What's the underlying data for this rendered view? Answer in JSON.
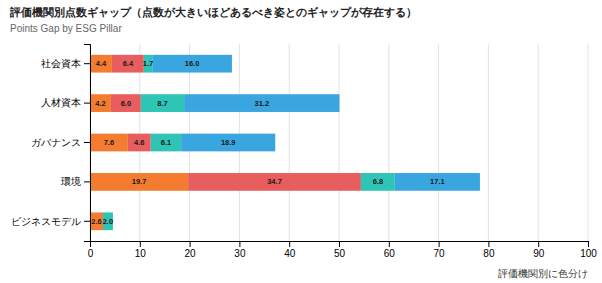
{
  "chart_data": {
    "type": "bar",
    "orientation": "horizontal",
    "stacked": true,
    "title": "評価機関別点数ギャップ（点数が大きいほどあるべき姿とのギャップが存在する）",
    "subtitle": "Points Gap by ESG Pillar",
    "annotation": "評価機関別に色分け",
    "categories": [
      "ビジネスモデル",
      "環境",
      "ガバナンス",
      "人材資本",
      "社会資本"
    ],
    "series": [
      {
        "color": "#f47c30",
        "values": [
          2.6,
          19.7,
          7.6,
          4.2,
          4.4
        ],
        "value_labels": [
          "2.6",
          "19.7",
          "7.6",
          "4.2",
          "4.4"
        ]
      },
      {
        "color": "#e85d5d",
        "values": [
          null,
          34.7,
          4.6,
          6.0,
          6.4
        ],
        "value_labels": [
          null,
          "34.7",
          "4.6",
          "6.0",
          "6.4"
        ]
      },
      {
        "color": "#2ec4b6",
        "values": [
          2.0,
          6.8,
          6.1,
          8.7,
          1.7
        ],
        "value_labels": [
          "2.0",
          "6.8",
          "6.1",
          "8.7",
          "1.7"
        ]
      },
      {
        "color": "#3aa6e0",
        "values": [
          null,
          17.1,
          18.9,
          31.2,
          16.0
        ],
        "value_labels": [
          null,
          "17.1",
          "18.9",
          "31.2",
          "16.0"
        ]
      }
    ],
    "xlim": [
      0,
      100
    ],
    "xticks": [
      0,
      10,
      20,
      30,
      40,
      50,
      60,
      70,
      80,
      90,
      100
    ],
    "grid": true,
    "data_labels": true
  }
}
